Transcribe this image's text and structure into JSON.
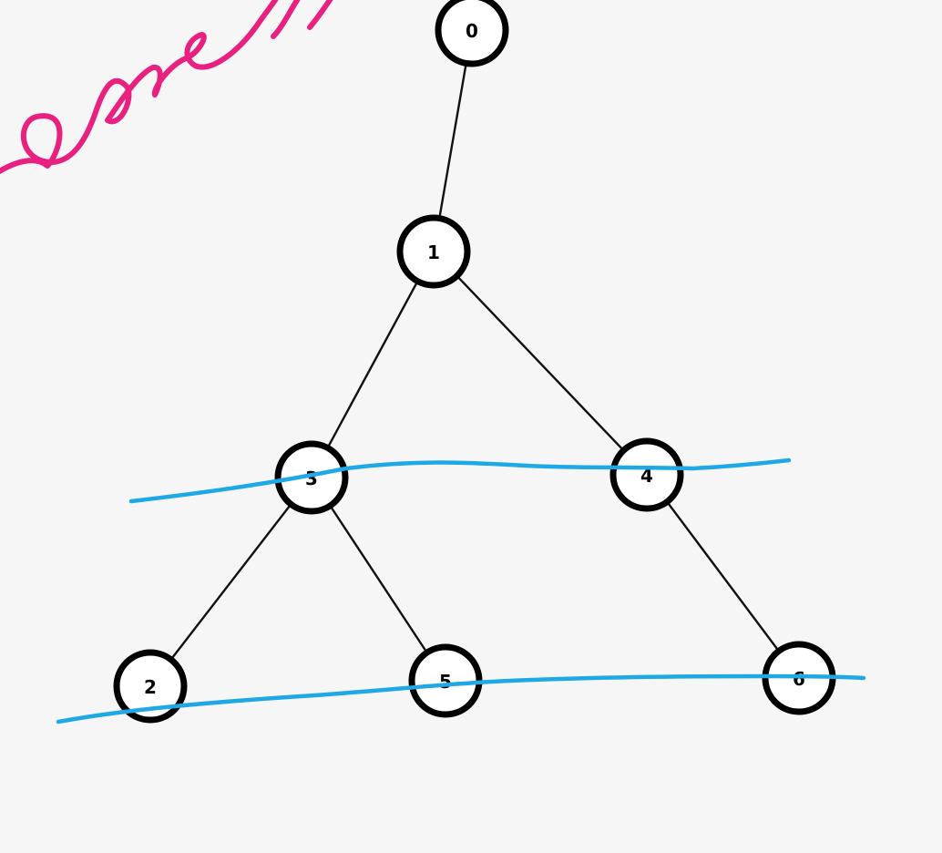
{
  "colors": {
    "background": "#f6f6f7",
    "node_stroke": "#000000",
    "node_fill": "#ffffff",
    "edge": "#111111",
    "pink_ink": "#e8207f",
    "blue_ink": "#1fa8e6"
  },
  "tree": {
    "nodes": [
      {
        "id": "n0",
        "label": "0"
      },
      {
        "id": "n1",
        "label": "1"
      },
      {
        "id": "n3",
        "label": "3"
      },
      {
        "id": "n4",
        "label": "4"
      },
      {
        "id": "n2",
        "label": "2"
      },
      {
        "id": "n5",
        "label": "5"
      },
      {
        "id": "n6",
        "label": "6"
      }
    ],
    "edges": [
      {
        "from": "n0",
        "to": "n1"
      },
      {
        "from": "n1",
        "to": "n3"
      },
      {
        "from": "n1",
        "to": "n4"
      },
      {
        "from": "n3",
        "to": "n2"
      },
      {
        "from": "n3",
        "to": "n5"
      },
      {
        "from": "n4",
        "to": "n6"
      }
    ]
  },
  "annotations": {
    "pink_handwriting": "searcht",
    "blue_strokes": [
      "level-2-strike",
      "level-3-strike"
    ]
  }
}
